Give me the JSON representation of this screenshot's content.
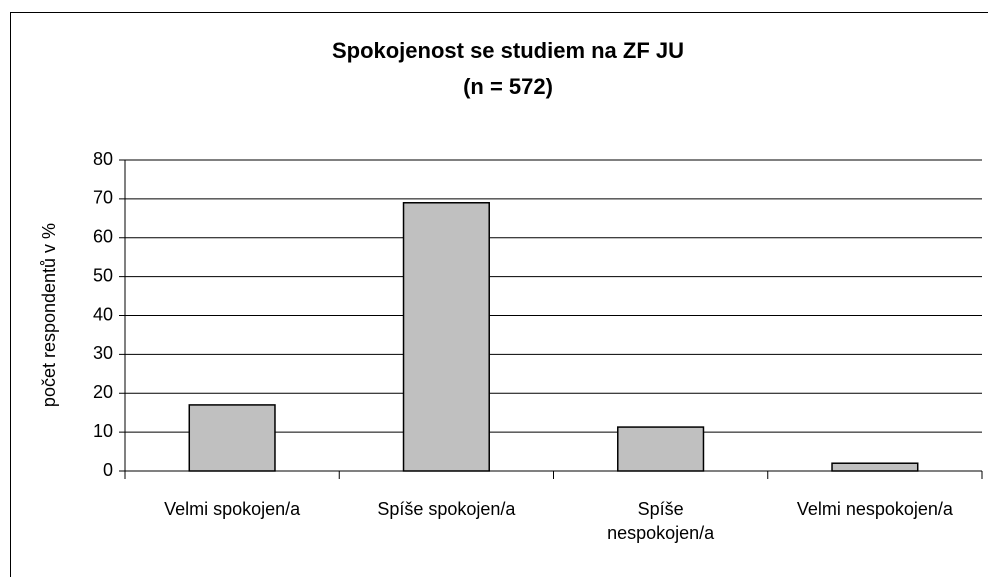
{
  "chart_data": {
    "type": "bar",
    "title": "Spokojenost se studiem na ZF JU",
    "subtitle": "(n = 572)",
    "y_label": "počet respondentů v %",
    "categories": [
      "Velmi spokojen/a",
      "Spíše spokojen/a",
      "Spíše nespokojen/a",
      "Velmi nespokojen/a"
    ],
    "values": [
      17,
      69,
      11.3,
      2
    ],
    "color": "#c0c0c0",
    "ylim": [
      0,
      80
    ],
    "yticks": [
      0,
      10,
      20,
      30,
      40,
      50,
      60,
      70,
      80
    ],
    "grid": true
  }
}
